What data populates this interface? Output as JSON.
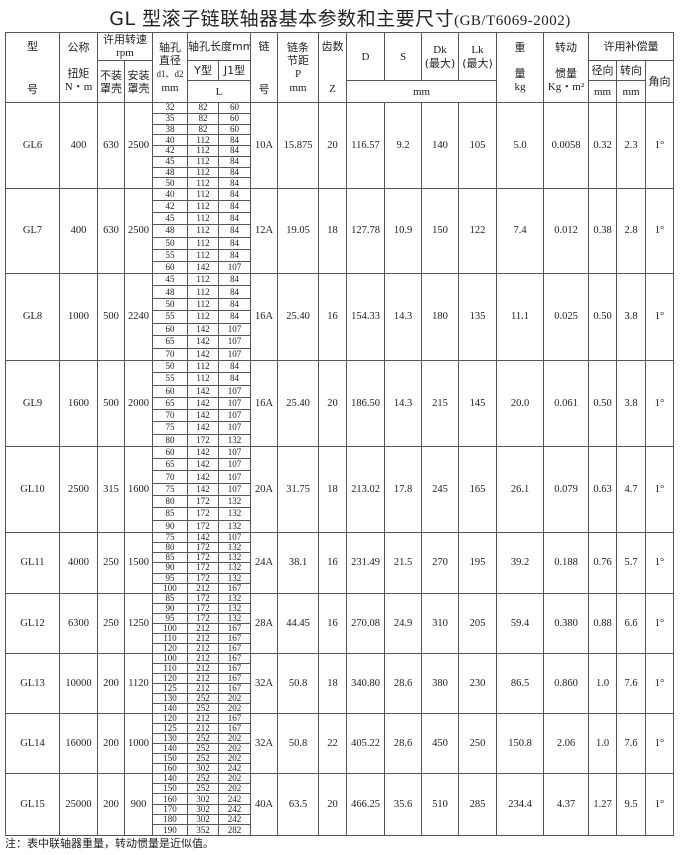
{
  "title": {
    "main": "GL 型滚子链联轴器基本参数和主要尺寸",
    "suffix": "(GB/T6069-2002)"
  },
  "header": {
    "model_top": "型",
    "model_bottom": "号",
    "torque_1": "公称",
    "torque_2": "扭矩",
    "torque_unit": "N・m",
    "speed": "许用转速",
    "speed_unit": "rpm",
    "speed_no_cover": "不装罩壳",
    "speed_cover": "安装罩壳",
    "bore_1": "轴孔",
    "bore_2": "直径",
    "bore_3": "d1、d2",
    "bore_unit": "mm",
    "length": "轴孔长度mm",
    "length_y": "Y型",
    "length_j": "J1型",
    "length_l": "L",
    "chain_top": "链",
    "chain_bottom": "号",
    "pitch_1": "链条",
    "pitch_2": "节距",
    "pitch_3": "P",
    "pitch_unit": "mm",
    "teeth": "齿数",
    "teeth_unit": "Z",
    "D": "D",
    "S": "S",
    "Dk": "Dk",
    "Dk_note": "(最大)",
    "Lk": "Lk",
    "Lk_note": "(最大)",
    "dims_unit": "mm",
    "weight_top": "重",
    "weight_bottom": "量",
    "weight_unit": "kg",
    "inertia_1": "转动",
    "inertia_2": "惯量",
    "inertia_unit": "Kg・m²",
    "comp": "许用补偿量",
    "comp_radial": "径向",
    "comp_axial": "转向",
    "comp_angular": "角向",
    "comp_unit_radial": "mm",
    "comp_unit_axial": "mm"
  },
  "rows": [
    {
      "model": "GL6",
      "torque": "400",
      "speed_no_cover": "630",
      "speed_cover": "2500",
      "chain": "10A",
      "pitch": "15.875",
      "teeth": "20",
      "D": "116.57",
      "S": "9.2",
      "Dk": "140",
      "Lk": "105",
      "weight": "5.0",
      "inertia": "0.0058",
      "radial": "0.32",
      "axial": "2.3",
      "angular": "1°",
      "bores": [
        [
          "32",
          "82",
          "60"
        ],
        [
          "35",
          "82",
          "60"
        ],
        [
          "38",
          "82",
          "60"
        ],
        [
          "40",
          "112",
          "84"
        ],
        [
          "42",
          "112",
          "84"
        ],
        [
          "45",
          "112",
          "84"
        ],
        [
          "48",
          "112",
          "84"
        ],
        [
          "50",
          "112",
          "84"
        ]
      ]
    },
    {
      "model": "GL7",
      "torque": "400",
      "speed_no_cover": "630",
      "speed_cover": "2500",
      "chain": "12A",
      "pitch": "19.05",
      "teeth": "18",
      "D": "127.78",
      "S": "10.9",
      "Dk": "150",
      "Lk": "122",
      "weight": "7.4",
      "inertia": "0.012",
      "radial": "0.38",
      "axial": "2.8",
      "angular": "1°",
      "bores": [
        [
          "40",
          "112",
          "84"
        ],
        [
          "42",
          "112",
          "84"
        ],
        [
          "45",
          "112",
          "84"
        ],
        [
          "48",
          "112",
          "84"
        ],
        [
          "50",
          "112",
          "84"
        ],
        [
          "55",
          "112",
          "84"
        ],
        [
          "60",
          "142",
          "107"
        ]
      ]
    },
    {
      "model": "GL8",
      "torque": "1000",
      "speed_no_cover": "500",
      "speed_cover": "2240",
      "chain": "16A",
      "pitch": "25.40",
      "teeth": "16",
      "D": "154.33",
      "S": "14.3",
      "Dk": "180",
      "Lk": "135",
      "weight": "11.1",
      "inertia": "0.025",
      "radial": "0.50",
      "axial": "3.8",
      "angular": "1°",
      "bores": [
        [
          "45",
          "112",
          "84"
        ],
        [
          "48",
          "112",
          "84"
        ],
        [
          "50",
          "112",
          "84"
        ],
        [
          "55",
          "112",
          "84"
        ],
        [
          "60",
          "142",
          "107"
        ],
        [
          "65",
          "142",
          "107"
        ],
        [
          "70",
          "142",
          "107"
        ]
      ]
    },
    {
      "model": "GL9",
      "torque": "1600",
      "speed_no_cover": "500",
      "speed_cover": "2000",
      "chain": "16A",
      "pitch": "25.40",
      "teeth": "20",
      "D": "186.50",
      "S": "14.3",
      "Dk": "215",
      "Lk": "145",
      "weight": "20.0",
      "inertia": "0.061",
      "radial": "0.50",
      "axial": "3.8",
      "angular": "1°",
      "bores": [
        [
          "50",
          "112",
          "84"
        ],
        [
          "55",
          "112",
          "84"
        ],
        [
          "60",
          "142",
          "107"
        ],
        [
          "65",
          "142",
          "107"
        ],
        [
          "70",
          "142",
          "107"
        ],
        [
          "75",
          "142",
          "107"
        ],
        [
          "80",
          "172",
          "132"
        ]
      ]
    },
    {
      "model": "GL10",
      "torque": "2500",
      "speed_no_cover": "315",
      "speed_cover": "1600",
      "chain": "20A",
      "pitch": "31.75",
      "teeth": "18",
      "D": "213.02",
      "S": "17.8",
      "Dk": "245",
      "Lk": "165",
      "weight": "26.1",
      "inertia": "0.079",
      "radial": "0.63",
      "axial": "4.7",
      "angular": "1°",
      "bores": [
        [
          "60",
          "142",
          "107"
        ],
        [
          "65",
          "142",
          "107"
        ],
        [
          "70",
          "142",
          "107"
        ],
        [
          "75",
          "142",
          "107"
        ],
        [
          "80",
          "172",
          "132"
        ],
        [
          "85",
          "172",
          "132"
        ],
        [
          "90",
          "172",
          "132"
        ]
      ]
    },
    {
      "model": "GL11",
      "torque": "4000",
      "speed_no_cover": "250",
      "speed_cover": "1500",
      "chain": "24A",
      "pitch": "38.1",
      "teeth": "16",
      "D": "231.49",
      "S": "21.5",
      "Dk": "270",
      "Lk": "195",
      "weight": "39.2",
      "inertia": "0.188",
      "radial": "0.76",
      "axial": "5.7",
      "angular": "1°",
      "bores": [
        [
          "75",
          "142",
          "107"
        ],
        [
          "80",
          "172",
          "132"
        ],
        [
          "85",
          "172",
          "132"
        ],
        [
          "90",
          "172",
          "132"
        ],
        [
          "95",
          "172",
          "132"
        ],
        [
          "100",
          "212",
          "167"
        ]
      ]
    },
    {
      "model": "GL12",
      "torque": "6300",
      "speed_no_cover": "250",
      "speed_cover": "1250",
      "chain": "28A",
      "pitch": "44.45",
      "teeth": "16",
      "D": "270.08",
      "S": "24.9",
      "Dk": "310",
      "Lk": "205",
      "weight": "59.4",
      "inertia": "0.380",
      "radial": "0.88",
      "axial": "6.6",
      "angular": "1°",
      "bores": [
        [
          "85",
          "172",
          "132"
        ],
        [
          "90",
          "172",
          "132"
        ],
        [
          "95",
          "172",
          "132"
        ],
        [
          "100",
          "212",
          "167"
        ],
        [
          "110",
          "212",
          "167"
        ],
        [
          "120",
          "212",
          "167"
        ]
      ]
    },
    {
      "model": "GL13",
      "torque": "10000",
      "speed_no_cover": "200",
      "speed_cover": "1120",
      "chain": "32A",
      "pitch": "50.8",
      "teeth": "18",
      "D": "340.80",
      "S": "28.6",
      "Dk": "380",
      "Lk": "230",
      "weight": "86.5",
      "inertia": "0.860",
      "radial": "1.0",
      "axial": "7.6",
      "angular": "1°",
      "bores": [
        [
          "100",
          "212",
          "167"
        ],
        [
          "110",
          "212",
          "167"
        ],
        [
          "120",
          "212",
          "167"
        ],
        [
          "125",
          "212",
          "167"
        ],
        [
          "130",
          "252",
          "202"
        ],
        [
          "140",
          "252",
          "202"
        ]
      ]
    },
    {
      "model": "GL14",
      "torque": "16000",
      "speed_no_cover": "200",
      "speed_cover": "1000",
      "chain": "32A",
      "pitch": "50.8",
      "teeth": "22",
      "D": "405.22",
      "S": "28.6",
      "Dk": "450",
      "Lk": "250",
      "weight": "150.8",
      "inertia": "2.06",
      "radial": "1.0",
      "axial": "7.6",
      "angular": "1°",
      "bores": [
        [
          "120",
          "212",
          "167"
        ],
        [
          "125",
          "212",
          "167"
        ],
        [
          "130",
          "252",
          "202"
        ],
        [
          "140",
          "252",
          "202"
        ],
        [
          "150",
          "252",
          "202"
        ],
        [
          "160",
          "302",
          "242"
        ]
      ]
    },
    {
      "model": "GL15",
      "torque": "25000",
      "speed_no_cover": "200",
      "speed_cover": "900",
      "chain": "40A",
      "pitch": "63.5",
      "teeth": "20",
      "D": "466.25",
      "S": "35.6",
      "Dk": "510",
      "Lk": "285",
      "weight": "234.4",
      "inertia": "4.37",
      "radial": "1.27",
      "axial": "9.5",
      "angular": "1°",
      "bores": [
        [
          "140",
          "252",
          "202"
        ],
        [
          "150",
          "252",
          "202"
        ],
        [
          "160",
          "302",
          "242"
        ],
        [
          "170",
          "302",
          "242"
        ],
        [
          "180",
          "302",
          "242"
        ],
        [
          "190",
          "352",
          "282"
        ]
      ]
    }
  ],
  "note": "注：表中联轴器重量，转动惯量是近似值。"
}
